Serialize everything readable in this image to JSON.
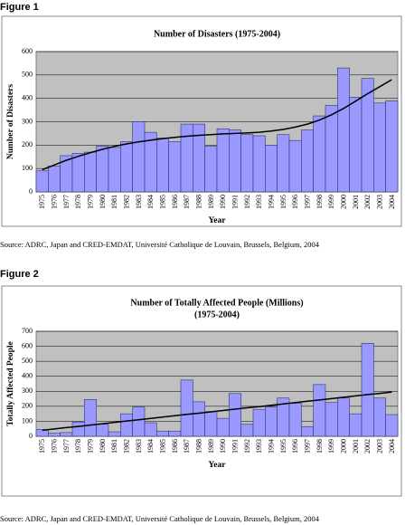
{
  "chart_data": [
    {
      "type": "bar",
      "caption": "Figure 1",
      "title": "Number of Disasters (1975-2004)",
      "x_label": "Year",
      "y_label": "Number of Disasters",
      "categories": [
        "1975",
        "1976",
        "1977",
        "1978",
        "1979",
        "1980",
        "1981",
        "1982",
        "1983",
        "1984",
        "1985",
        "1986",
        "1987",
        "1988",
        "1989",
        "1990",
        "1991",
        "1992",
        "1993",
        "1994",
        "1995",
        "1996",
        "1997",
        "1998",
        "1999",
        "2000",
        "2001",
        "2002",
        "2003",
        "2004"
      ],
      "values": [
        90,
        110,
        155,
        165,
        170,
        195,
        190,
        215,
        300,
        255,
        230,
        215,
        290,
        290,
        195,
        270,
        265,
        245,
        240,
        200,
        245,
        220,
        265,
        325,
        370,
        530,
        405,
        485,
        380,
        390
      ],
      "color": "#9999ff",
      "trendline": {
        "color": "#000000",
        "values": [
          95,
          115,
          135,
          152,
          168,
          182,
          195,
          205,
          214,
          221,
          228,
          233,
          238,
          242,
          245,
          248,
          250,
          252,
          255,
          260,
          267,
          277,
          290,
          307,
          330,
          357,
          388,
          420,
          450,
          480
        ]
      },
      "ylim": [
        0,
        600
      ],
      "yticks": [
        0,
        100,
        200,
        300,
        400,
        500,
        600
      ],
      "grid": true,
      "source": "Source: ADRC, Japan and CRED-EMDAT, Université Catholique de Louvain, Brussels, Belgium, 2004"
    },
    {
      "type": "bar",
      "caption": "Figure 2",
      "title": "Number of Totally Affected People (Millions)",
      "subtitle": "(1975-2004)",
      "x_label": "Year",
      "y_label": "Totally Affected People",
      "categories": [
        "1975",
        "1976",
        "1977",
        "1978",
        "1979",
        "1980",
        "1981",
        "1982",
        "1983",
        "1984",
        "1985",
        "1986",
        "1987",
        "1988",
        "1989",
        "1990",
        "1991",
        "1992",
        "1993",
        "1994",
        "1995",
        "1996",
        "1997",
        "1998",
        "1999",
        "2000",
        "2001",
        "2002",
        "2003",
        "2004"
      ],
      "values": [
        45,
        20,
        25,
        95,
        245,
        80,
        30,
        150,
        195,
        90,
        35,
        35,
        375,
        230,
        165,
        120,
        285,
        80,
        180,
        195,
        255,
        220,
        65,
        345,
        225,
        255,
        150,
        620,
        255,
        145
      ],
      "color": "#9999ff",
      "trendline": {
        "color": "#000000",
        "values": [
          40,
          49,
          58,
          66,
          75,
          84,
          93,
          102,
          110,
          119,
          128,
          137,
          146,
          154,
          163,
          172,
          181,
          190,
          198,
          207,
          216,
          225,
          234,
          242,
          251,
          260,
          269,
          278,
          286,
          295
        ]
      },
      "ylim": [
        0,
        700
      ],
      "yticks": [
        0,
        100,
        200,
        300,
        400,
        500,
        600,
        700
      ],
      "grid": true,
      "source": "Source: ADRC, Japan and CRED-EMDAT, Université Catholique de Louvain, Brussels, Belgium, 2004"
    }
  ]
}
